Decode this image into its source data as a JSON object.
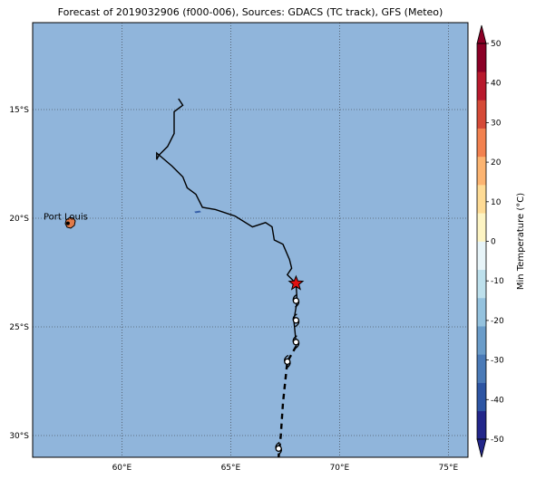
{
  "title": "Forecast of 2019032906 (f000-006), Sources: GDACS (TC track), GFS (Meteo)",
  "map": {
    "lon_range": [
      55.9,
      75.9
    ],
    "lat_range": [
      -31.0,
      -11.0
    ],
    "ocean_color": "#90b5db",
    "lat_ticks": [
      {
        "value": -15,
        "label": "15°S"
      },
      {
        "value": -20,
        "label": "20°S"
      },
      {
        "value": -25,
        "label": "25°S"
      },
      {
        "value": -30,
        "label": "30°S"
      }
    ],
    "lon_ticks": [
      {
        "value": 60,
        "label": "60°E"
      },
      {
        "value": 65,
        "label": "65°E"
      },
      {
        "value": 70,
        "label": "70°E"
      },
      {
        "value": 75,
        "label": "75°E"
      }
    ],
    "city": {
      "name": "Port Louis",
      "lon": 57.5,
      "lat": -20.15
    }
  },
  "track": {
    "past": [
      [
        62.6,
        -14.5
      ],
      [
        62.8,
        -14.8
      ],
      [
        62.4,
        -15.1
      ],
      [
        62.4,
        -16.1
      ],
      [
        62.1,
        -16.7
      ],
      [
        61.7,
        -17.1
      ],
      [
        61.6,
        -17.3
      ],
      [
        61.6,
        -17.0
      ],
      [
        62.3,
        -17.6
      ],
      [
        62.8,
        -18.1
      ],
      [
        63.0,
        -18.6
      ],
      [
        63.4,
        -18.9
      ],
      [
        63.7,
        -19.5
      ],
      [
        64.3,
        -19.6
      ],
      [
        65.2,
        -19.9
      ],
      [
        66.0,
        -20.4
      ],
      [
        66.6,
        -20.2
      ],
      [
        66.9,
        -20.4
      ],
      [
        67.0,
        -21.0
      ],
      [
        67.4,
        -21.2
      ],
      [
        67.7,
        -21.9
      ],
      [
        67.8,
        -22.3
      ],
      [
        67.6,
        -22.6
      ],
      [
        68.0,
        -23.0
      ]
    ],
    "current": [
      68.0,
      -23.0
    ],
    "forecast_solid": [
      [
        68.0,
        -23.0
      ],
      [
        68.05,
        -23.8
      ],
      [
        67.9,
        -24.7
      ],
      [
        68.0,
        -25.7
      ],
      [
        68.0,
        -25.9
      ]
    ],
    "forecast_dashed": [
      [
        68.0,
        -25.9
      ],
      [
        67.6,
        -26.6
      ],
      [
        67.4,
        -28.5
      ],
      [
        67.3,
        -30.0
      ],
      [
        67.2,
        -31.0
      ]
    ],
    "storm_symbols": [
      [
        68.0,
        -23.8
      ],
      [
        68.0,
        -24.7
      ],
      [
        68.0,
        -25.7
      ],
      [
        67.6,
        -26.6
      ],
      [
        67.2,
        -30.6
      ]
    ]
  },
  "colorbar": {
    "label": "Min Temperature (°C)",
    "ticks": [
      50,
      40,
      30,
      20,
      10,
      0,
      -10,
      -20,
      -30,
      -40,
      -50
    ],
    "colors": [
      "#22268a",
      "#2d55a3",
      "#4a7ab7",
      "#6a9cc9",
      "#94c2de",
      "#bde0ec",
      "#e7f4f8",
      "#fdf4c3",
      "#fedb95",
      "#fcb471",
      "#f2814f",
      "#d54a37",
      "#b8192d",
      "#8b0026"
    ]
  }
}
